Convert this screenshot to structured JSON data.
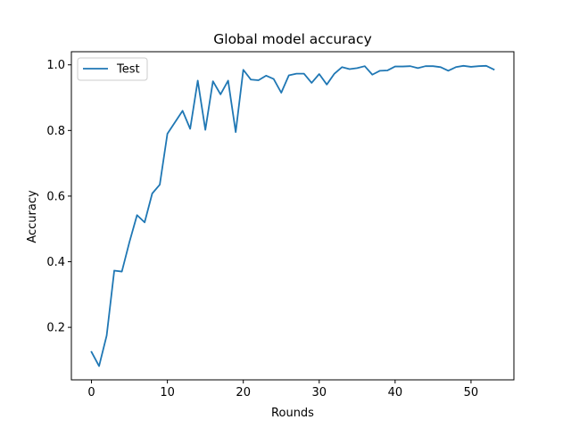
{
  "chart_data": {
    "type": "line",
    "title": "Global model accuracy",
    "xlabel": "Rounds",
    "ylabel": "Accuracy",
    "xlim": [
      -2.65,
      55.65
    ],
    "ylim": [
      0.04,
      1.04
    ],
    "xticks": [
      0,
      10,
      20,
      30,
      40,
      50
    ],
    "yticks": [
      0.2,
      0.4,
      0.6,
      0.8,
      1.0
    ],
    "ytick_labels": [
      "0.2",
      "0.4",
      "0.6",
      "0.8",
      "1.0"
    ],
    "grid": false,
    "legend_position": "upper-left",
    "series": [
      {
        "name": "Test",
        "color": "#1f77b4",
        "x": [
          0,
          1,
          2,
          3,
          4,
          5,
          6,
          7,
          8,
          9,
          10,
          11,
          12,
          13,
          14,
          15,
          16,
          17,
          18,
          19,
          20,
          21,
          22,
          23,
          24,
          25,
          26,
          27,
          28,
          29,
          30,
          31,
          32,
          33,
          34,
          35,
          36,
          37,
          38,
          39,
          40,
          41,
          42,
          43,
          44,
          45,
          46,
          47,
          48,
          49,
          50,
          51,
          52,
          53
        ],
        "values": [
          0.125,
          0.082,
          0.175,
          0.373,
          0.37,
          0.46,
          0.542,
          0.52,
          0.608,
          0.635,
          0.79,
          0.825,
          0.86,
          0.805,
          0.952,
          0.802,
          0.95,
          0.91,
          0.952,
          0.795,
          0.985,
          0.955,
          0.953,
          0.967,
          0.957,
          0.915,
          0.968,
          0.973,
          0.973,
          0.945,
          0.972,
          0.94,
          0.973,
          0.993,
          0.987,
          0.99,
          0.996,
          0.97,
          0.982,
          0.983,
          0.995,
          0.995,
          0.996,
          0.99,
          0.996,
          0.996,
          0.993,
          0.982,
          0.993,
          0.997,
          0.994,
          0.996,
          0.997,
          0.986
        ]
      }
    ]
  }
}
